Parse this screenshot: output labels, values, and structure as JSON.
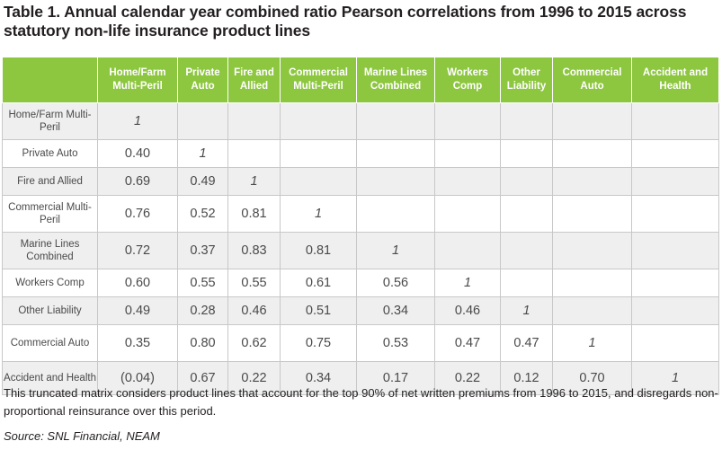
{
  "title": "Table 1. Annual calendar year combined ratio Pearson correlations from 1996 to 2015 across statutory non-life insurance product lines",
  "columns": [
    "Home/Farm Multi-Peril",
    "Private Auto",
    "Fire and Allied",
    "Commercial Multi-Peril",
    "Marine Lines Combined",
    "Workers Comp",
    "Other Liability",
    "Commercial Auto",
    "Accident and Health"
  ],
  "rows": [
    {
      "label": "Home/Farm Multi-Peril",
      "values": [
        "1",
        "",
        "",
        "",
        "",
        "",
        "",
        "",
        ""
      ]
    },
    {
      "label": "Private Auto",
      "values": [
        "0.40",
        "1",
        "",
        "",
        "",
        "",
        "",
        "",
        ""
      ]
    },
    {
      "label": "Fire and Allied",
      "values": [
        "0.69",
        "0.49",
        "1",
        "",
        "",
        "",
        "",
        "",
        ""
      ]
    },
    {
      "label": "Commercial Multi-Peril",
      "values": [
        "0.76",
        "0.52",
        "0.81",
        "1",
        "",
        "",
        "",
        "",
        ""
      ]
    },
    {
      "label": "Marine Lines Combined",
      "values": [
        "0.72",
        "0.37",
        "0.83",
        "0.81",
        "1",
        "",
        "",
        "",
        ""
      ]
    },
    {
      "label": "Workers Comp",
      "values": [
        "0.60",
        "0.55",
        "0.55",
        "0.61",
        "0.56",
        "1",
        "",
        "",
        ""
      ]
    },
    {
      "label": "Other Liability",
      "values": [
        "0.49",
        "0.28",
        "0.46",
        "0.51",
        "0.34",
        "0.46",
        "1",
        "",
        ""
      ]
    },
    {
      "label": "Commercial Auto",
      "values": [
        "0.35",
        "0.80",
        "0.62",
        "0.75",
        "0.53",
        "0.47",
        "0.47",
        "1",
        ""
      ]
    },
    {
      "label": "Accident and Health",
      "values": [
        "(0.04)",
        "0.67",
        "0.22",
        "0.34",
        "0.17",
        "0.22",
        "0.12",
        "0.70",
        "1"
      ]
    }
  ],
  "note": "This truncated matrix considers product lines that account for the top 90% of net written premiums from 1996 to 2015, and disregards non-proportional reinsurance over this period.",
  "source": "Source: SNL Financial, NEAM",
  "colors": {
    "header_green": "#8dc63f",
    "row_shade": "#efefef",
    "text": "#231f20"
  }
}
